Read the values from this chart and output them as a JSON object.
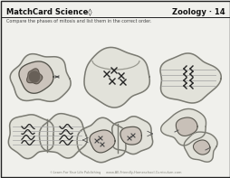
{
  "title_left": "MatchCard Science◊",
  "title_right": "Zoology · 14",
  "subtitle": "Compare the phases of mitosis and list them in the correct order.",
  "footer": "©Learn For Your Life Publishing     www.All-Friendly-Homeschool-Curriculum.com",
  "bg_color": "#f0f0ec",
  "cell_fill": "#e2e2da",
  "cell_edge": "#7a7a72",
  "nucleus_fill": "#c0b8b0",
  "nucleus_edge": "#505048",
  "nucleolus_fill": "#706860",
  "border_color": "#222222",
  "title_color": "#111111",
  "subtitle_color": "#444444",
  "footer_color": "#888880",
  "spindle_color": "#aaaaaa",
  "chrom_color": "#222222"
}
